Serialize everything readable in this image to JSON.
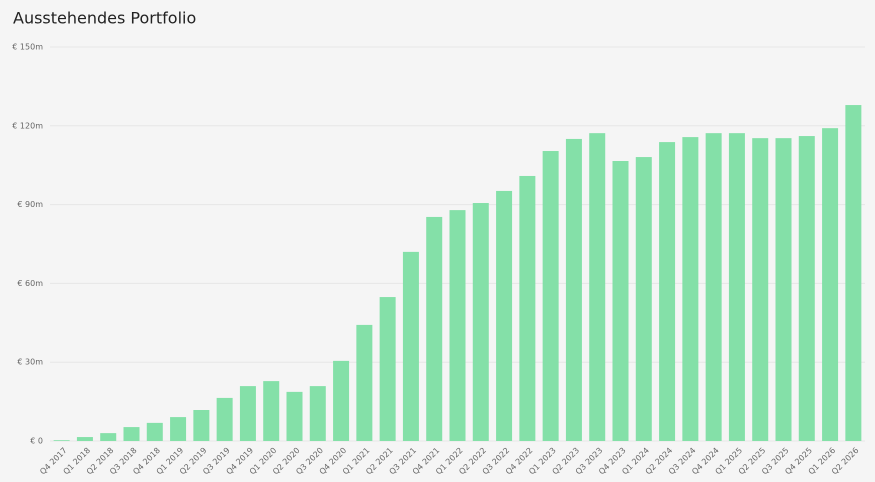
{
  "chart_data": {
    "type": "bar",
    "title": "Ausstehendes Portfolio",
    "categories": [
      "Q4 2017",
      "Q1 2018",
      "Q2 2018",
      "Q3 2018",
      "Q4 2018",
      "Q1 2019",
      "Q2 2019",
      "Q3 2019",
      "Q4 2019",
      "Q1 2020",
      "Q2 2020",
      "Q3 2020",
      "Q4 2020",
      "Q1 2021",
      "Q2 2021",
      "Q3 2021",
      "Q4 2021",
      "Q1 2022",
      "Q2 2022",
      "Q3 2022",
      "Q4 2022",
      "Q1 2023",
      "Q2 2023",
      "Q3 2023",
      "Q4 2023",
      "Q1 2024",
      "Q2 2024",
      "Q3 2024",
      "Q4 2024",
      "Q1 2025",
      "Q2 2025",
      "Q3 2025",
      "Q4 2025",
      "Q1 2026",
      "Q2 2026"
    ],
    "values": [
      0.3,
      1.5,
      3,
      5.3,
      6.9,
      9.1,
      11.8,
      16.4,
      20.9,
      22.8,
      18.7,
      20.9,
      30.5,
      44.2,
      54.8,
      72,
      85.3,
      87.9,
      90.6,
      95.2,
      100.9,
      110.4,
      115,
      117.2,
      106.6,
      108.1,
      113.8,
      115.7,
      117.2,
      117.2,
      115.3,
      115.3,
      116.1,
      119.1,
      127.9
    ],
    "color": "#84e0a8",
    "ylim": [
      0,
      150
    ],
    "yticks": [
      {
        "value": 0,
        "label": "€ 0"
      },
      {
        "value": 30,
        "label": "€ 30m"
      },
      {
        "value": 60,
        "label": "€ 60m"
      },
      {
        "value": 90,
        "label": "€ 90m"
      },
      {
        "value": 120,
        "label": "€ 120m"
      },
      {
        "value": 150,
        "label": "€ 150m"
      }
    ],
    "grid": true
  }
}
